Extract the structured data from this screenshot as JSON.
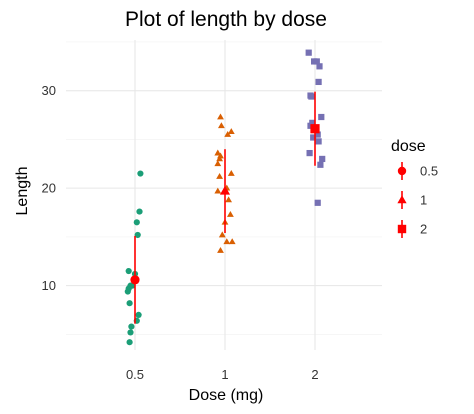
{
  "chart_data": {
    "type": "scatter",
    "title": "Plot of length  by dose",
    "xlabel": "Dose (mg)",
    "ylabel": "Length",
    "categories": [
      "0.5",
      "1",
      "2"
    ],
    "yticks": [
      10,
      20,
      30
    ],
    "ylim": [
      3.4,
      35.2
    ],
    "grid": true,
    "legend": {
      "title": "dose",
      "position": "right",
      "entries": [
        "0.5",
        "1",
        "2"
      ]
    },
    "series": [
      {
        "name": "0.5",
        "color": "#1b9e77",
        "shape": "circle",
        "points": [
          {
            "x": -0.06,
            "y": 4.2
          },
          {
            "x": -0.05,
            "y": 5.2
          },
          {
            "x": -0.04,
            "y": 5.8
          },
          {
            "x": 0.02,
            "y": 6.4
          },
          {
            "x": 0.04,
            "y": 7.0
          },
          {
            "x": -0.06,
            "y": 8.2
          },
          {
            "x": -0.08,
            "y": 9.4
          },
          {
            "x": -0.07,
            "y": 9.7
          },
          {
            "x": -0.03,
            "y": 10.0
          },
          {
            "x": -0.05,
            "y": 10.0
          },
          {
            "x": 0.0,
            "y": 11.2
          },
          {
            "x": -0.07,
            "y": 11.5
          },
          {
            "x": 0.03,
            "y": 15.2
          },
          {
            "x": 0.02,
            "y": 16.5
          },
          {
            "x": 0.05,
            "y": 17.6
          },
          {
            "x": 0.06,
            "y": 21.5
          }
        ],
        "mean": 10.6,
        "sd_low": 6.1,
        "sd_high": 15.1
      },
      {
        "name": "1",
        "color": "#d95f02",
        "shape": "triangle",
        "points": [
          {
            "x": -0.05,
            "y": 13.6
          },
          {
            "x": 0.02,
            "y": 14.5
          },
          {
            "x": 0.08,
            "y": 14.5
          },
          {
            "x": -0.03,
            "y": 15.2
          },
          {
            "x": 0.0,
            "y": 16.5
          },
          {
            "x": 0.06,
            "y": 17.3
          },
          {
            "x": 0.04,
            "y": 18.8
          },
          {
            "x": -0.08,
            "y": 19.7
          },
          {
            "x": 0.02,
            "y": 20.0
          },
          {
            "x": -0.06,
            "y": 21.2
          },
          {
            "x": 0.07,
            "y": 21.5
          },
          {
            "x": -0.08,
            "y": 22.5
          },
          {
            "x": -0.06,
            "y": 23.0
          },
          {
            "x": -0.05,
            "y": 23.3
          },
          {
            "x": -0.08,
            "y": 23.6
          },
          {
            "x": 0.03,
            "y": 25.5
          },
          {
            "x": 0.07,
            "y": 25.8
          },
          {
            "x": -0.04,
            "y": 26.4
          },
          {
            "x": -0.05,
            "y": 27.3
          }
        ],
        "mean": 19.7,
        "sd_low": 15.4,
        "sd_high": 24.0
      },
      {
        "name": "2",
        "color": "#7570b3",
        "shape": "square",
        "points": [
          {
            "x": 0.03,
            "y": 18.5
          },
          {
            "x": 0.06,
            "y": 22.4
          },
          {
            "x": -0.06,
            "y": 23.6
          },
          {
            "x": 0.08,
            "y": 23.0
          },
          {
            "x": 0.04,
            "y": 24.8
          },
          {
            "x": -0.02,
            "y": 25.2
          },
          {
            "x": 0.03,
            "y": 25.5
          },
          {
            "x": -0.05,
            "y": 26.4
          },
          {
            "x": -0.03,
            "y": 26.7
          },
          {
            "x": 0.07,
            "y": 27.3
          },
          {
            "x": -0.04,
            "y": 29.4
          },
          {
            "x": -0.05,
            "y": 29.5
          },
          {
            "x": 0.04,
            "y": 30.9
          },
          {
            "x": 0.05,
            "y": 32.5
          },
          {
            "x": -0.01,
            "y": 33.0
          },
          {
            "x": 0.02,
            "y": 33.0
          },
          {
            "x": -0.07,
            "y": 33.9
          }
        ],
        "mean": 26.1,
        "sd_low": 22.3,
        "sd_high": 29.9
      }
    ]
  },
  "summary_color": "#ff0000"
}
